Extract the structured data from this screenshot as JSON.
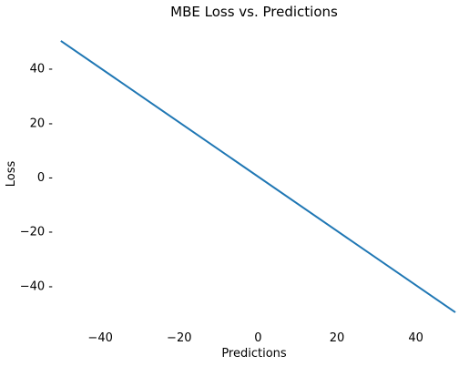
{
  "chart_data": {
    "type": "line",
    "title": "MBE Loss vs. Predictions",
    "xlabel": "Predictions",
    "ylabel": "Loss",
    "xlim": [
      -52.5,
      50
    ],
    "ylim": [
      -55,
      55
    ],
    "xticks": [
      -40,
      -20,
      0,
      20,
      40
    ],
    "yticks": [
      -40,
      -20,
      0,
      20,
      40
    ],
    "xtick_labels": [
      "−40",
      "−20",
      "0",
      "20",
      "40"
    ],
    "ytick_labels": [
      "−40 -",
      "−20 -",
      "0 -",
      "20 -",
      "40 -"
    ],
    "grid": false,
    "series": [
      {
        "color": "#1f77b4",
        "x": [
          -50,
          50
        ],
        "y": [
          50,
          -50
        ]
      }
    ]
  }
}
